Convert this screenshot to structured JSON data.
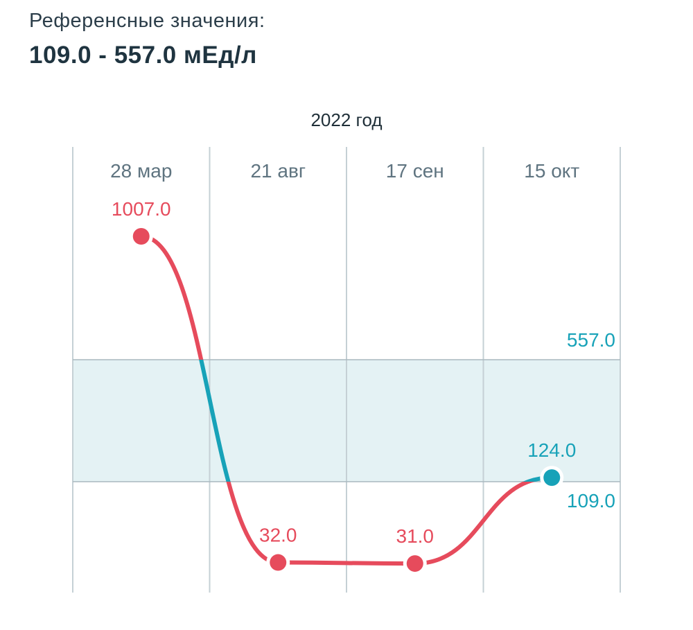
{
  "header": {
    "reference_label": "Референсные значения:",
    "reference_range": "109.0 - 557.0 мЕд/л"
  },
  "colors": {
    "out_of_range": "#e64b5c",
    "in_range": "#17a2b8",
    "band_fill": "#e4f2f4",
    "grid": "#c5d0d5",
    "tick_text": "#5f7480"
  },
  "chart_data": {
    "type": "line",
    "year_label": "2022 год",
    "categories": [
      "28 мар",
      "21 авг",
      "17 сен",
      "15 окт"
    ],
    "values": [
      1007.0,
      32.0,
      31.0,
      124.0
    ],
    "value_labels": [
      "1007.0",
      "32.0",
      "31.0",
      "124.0"
    ],
    "reference_range": {
      "low": 109.0,
      "high": 557.0,
      "low_label": "109.0",
      "high_label": "557.0"
    },
    "grid": true
  }
}
